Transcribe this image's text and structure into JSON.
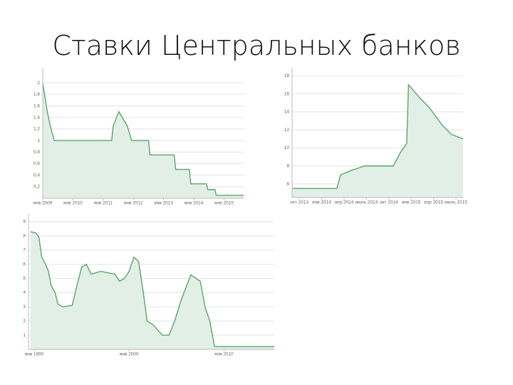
{
  "title": "Ставки Центральных банков",
  "chart_data": [
    {
      "type": "area",
      "color": "#5aa56b",
      "fill": "#e2efe6",
      "grid": true,
      "x": [
        2009.0,
        2009.15,
        2009.25,
        2009.38,
        2011.28,
        2011.33,
        2011.52,
        2011.8,
        2011.94,
        2012.5,
        2012.55,
        2013.35,
        2013.4,
        2013.85,
        2013.9,
        2014.42,
        2014.46,
        2014.7,
        2014.74,
        2015.65
      ],
      "values": [
        2,
        1.5,
        1.25,
        1,
        1,
        1.25,
        1.5,
        1.25,
        1,
        1,
        0.75,
        0.75,
        0.5,
        0.5,
        0.25,
        0.25,
        0.15,
        0.15,
        0.05,
        0.05
      ],
      "xlim": [
        2009.0,
        2015.65
      ],
      "ylim": [
        0,
        2.2
      ],
      "yticks": [
        {
          "value": 0.2,
          "label": "0,2"
        },
        {
          "value": 0.4,
          "label": "0,4"
        },
        {
          "value": 0.6,
          "label": "0,6"
        },
        {
          "value": 0.8,
          "label": "0,8"
        },
        1,
        {
          "value": 1.2,
          "label": "1,2"
        },
        {
          "value": 1.4,
          "label": "1,4"
        },
        {
          "value": 1.6,
          "label": "1,6"
        },
        {
          "value": 1.8,
          "label": "1,8"
        },
        2
      ],
      "xticks": [
        {
          "value": 2009,
          "label": "янв 2009"
        },
        {
          "value": 2010,
          "label": "янв 2010"
        },
        {
          "value": 2011,
          "label": "янв 2011"
        },
        {
          "value": 2012,
          "label": "янв 2012"
        },
        {
          "value": 2013,
          "label": "янв 2013"
        },
        {
          "value": 2014,
          "label": "янв 2014"
        },
        {
          "value": 2015,
          "label": "янв 2015"
        }
      ]
    },
    {
      "type": "area",
      "color": "#5aa56b",
      "fill": "#e2efe6",
      "grid": true,
      "x": [
        2013.67,
        2014.17,
        2014.21,
        2014.33,
        2014.48,
        2014.58,
        2014.8,
        2014.88,
        2014.95,
        2014.97,
        2015.1,
        2015.2,
        2015.35,
        2015.45,
        2015.58
      ],
      "values": [
        5.5,
        5.5,
        7,
        7.5,
        8,
        8,
        8,
        9.5,
        10.5,
        17,
        15.5,
        14.5,
        12.5,
        11.5,
        11
      ],
      "xlim": [
        2013.67,
        2015.58
      ],
      "ylim": [
        4.5,
        18.5
      ],
      "yticks": [
        6,
        8,
        10,
        12,
        14,
        16,
        18
      ],
      "xticks": [
        {
          "value": 2013.75,
          "label": "окт 2013"
        },
        {
          "value": 2014.0,
          "label": "янв 2014"
        },
        {
          "value": 2014.25,
          "label": "апр 2014"
        },
        {
          "value": 2014.5,
          "label": "июль 2014"
        },
        {
          "value": 2014.75,
          "label": "окт 2014"
        },
        {
          "value": 2015.0,
          "label": "янв 2015"
        },
        {
          "value": 2015.25,
          "label": "апр 2015"
        },
        {
          "value": 2015.5,
          "label": "июль 2015"
        }
      ]
    },
    {
      "type": "area",
      "color": "#5aa56b",
      "fill": "#e2efe6",
      "grid": true,
      "x": [
        1989.6,
        1990.2,
        1990.5,
        1990.8,
        1991.2,
        1991.5,
        1991.8,
        1992.2,
        1992.5,
        1993.0,
        1994.0,
        1994.5,
        1995.0,
        1995.5,
        1996.0,
        1997.0,
        1998.5,
        1999.0,
        1999.5,
        2000.0,
        2000.5,
        2001.0,
        2001.5,
        2001.9,
        2002.5,
        2003.5,
        2004.2,
        2004.8,
        2005.5,
        2006.5,
        2007.5,
        2008.0,
        2008.5,
        2009.0,
        2015.3
      ],
      "values": [
        8.3,
        8.2,
        7.9,
        6.5,
        6,
        5.5,
        4.5,
        4,
        3.2,
        3,
        3.1,
        4.5,
        5.8,
        6,
        5.3,
        5.5,
        5.3,
        4.8,
        5,
        5.5,
        6.5,
        6.2,
        4,
        2,
        1.75,
        1,
        1,
        2,
        3.5,
        5.25,
        4.8,
        3,
        2,
        0.2,
        0.2
      ],
      "xlim": [
        1989.4,
        2015.3
      ],
      "ylim": [
        0,
        9.3
      ],
      "yticks": [
        1,
        2,
        3,
        4,
        5,
        6,
        7,
        8,
        9
      ],
      "xticks": [
        {
          "value": 1990,
          "label": "янв 1990"
        },
        {
          "value": 2000,
          "label": "янв 2000"
        },
        {
          "value": 2010,
          "label": "янв 2010"
        }
      ]
    }
  ]
}
